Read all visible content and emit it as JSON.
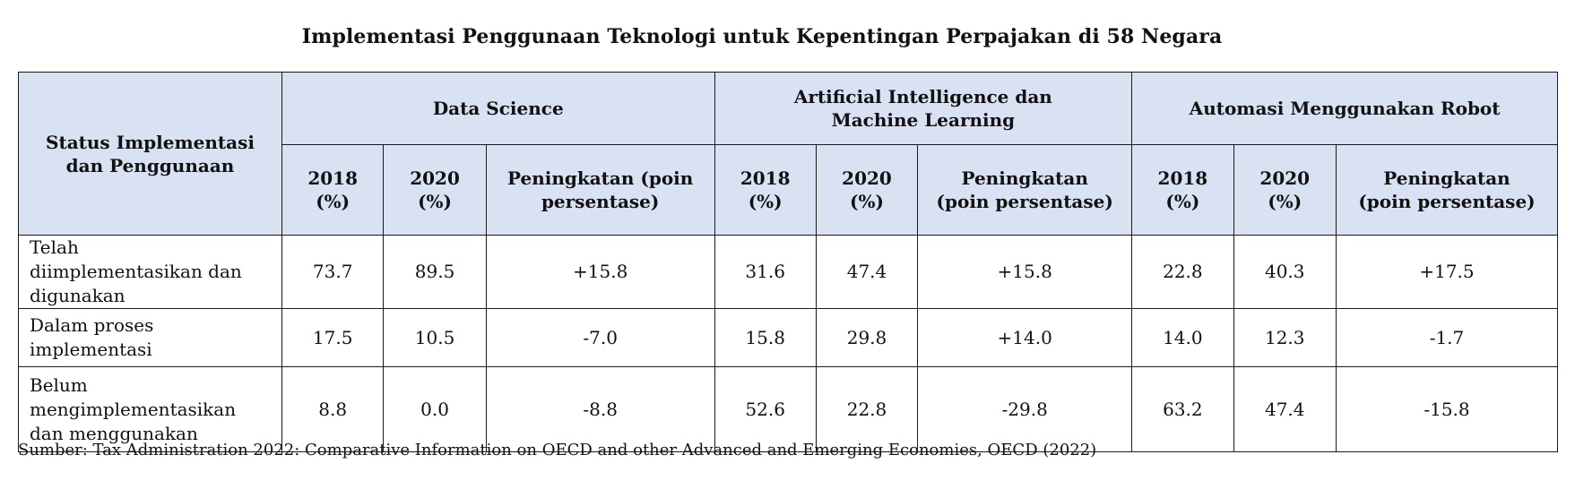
{
  "title": "Implementasi Penggunaan Teknologi untuk Kepentingan Perpajakan di 58 Negara",
  "table": {
    "row_header": "Status Implementasi dan Penggunaan",
    "groups": [
      {
        "name": "Data Science",
        "cols": [
          "2018 (%)",
          "2020 (%)",
          "Peningkatan (poin persentase)"
        ]
      },
      {
        "name": "Artificial Intelligence dan Machine Learning",
        "cols": [
          "2018 (%)",
          "2020 (%)",
          "Peningkatan (poin persentase)"
        ]
      },
      {
        "name": "Automasi Menggunakan Robot",
        "cols": [
          "2018 (%)",
          "2020 (%)",
          "Peningkatan (poin persentase)"
        ]
      }
    ],
    "rows": [
      {
        "label": "Telah diimplementasikan dan digunakan",
        "values": [
          "73.7",
          "89.5",
          "+15.8",
          "31.6",
          "47.4",
          "+15.8",
          "22.8",
          "40.3",
          "+17.5"
        ]
      },
      {
        "label": "Dalam proses implementasi",
        "values": [
          "17.5",
          "10.5",
          "-7.0",
          "15.8",
          "29.8",
          "+14.0",
          "14.0",
          "12.3",
          "-1.7"
        ]
      },
      {
        "label": "Belum mengimplementasikan dan menggunakan",
        "values": [
          "8.8",
          "0.0",
          "-8.8",
          "52.6",
          "22.8",
          "-29.8",
          "63.2",
          "47.4",
          "-15.8"
        ]
      }
    ]
  },
  "source": "Sumber: Tax Administration 2022: Comparative Information on OECD and other Advanced and Emerging Economies, OECD (2022)",
  "colors": {
    "header_bg": "#d9e2f3",
    "border": "#1a1a1a"
  }
}
